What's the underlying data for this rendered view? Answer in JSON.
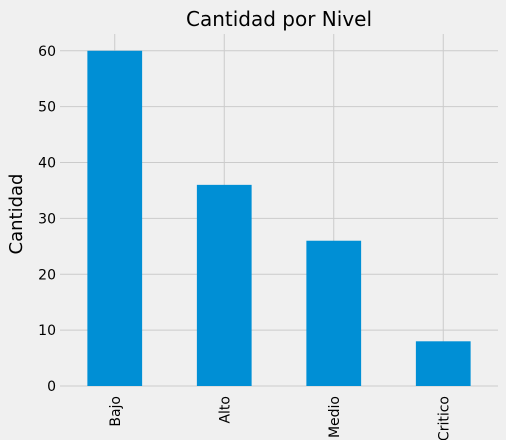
{
  "chart_data": {
    "type": "bar",
    "title": "Cantidad por Nivel",
    "xlabel": "",
    "ylabel": "Cantidad",
    "categories": [
      "Bajo",
      "Alto",
      "Medio",
      "Critico"
    ],
    "values": [
      60,
      36,
      26,
      8
    ],
    "ylim": [
      0,
      63
    ],
    "yticks": [
      0,
      10,
      20,
      30,
      40,
      50,
      60
    ],
    "grid": true,
    "colors": {
      "bar": "#008fd5",
      "background": "#f0f0f0",
      "grid": "#cbcbcb"
    }
  }
}
